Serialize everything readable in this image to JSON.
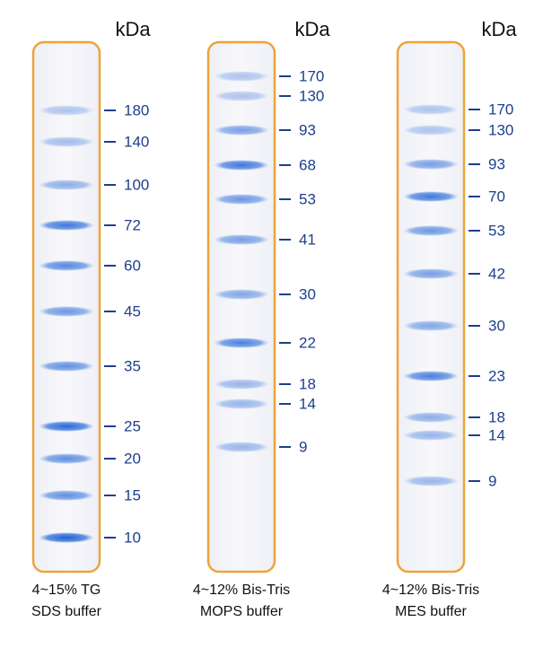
{
  "lanes": [
    {
      "unit": "kDa",
      "markers": [
        180,
        140,
        100,
        72,
        60,
        45,
        35,
        25,
        20,
        15,
        10
      ],
      "caption": [
        "4~15% TG",
        "SDS buffer"
      ]
    },
    {
      "unit": "kDa",
      "markers": [
        170,
        130,
        93,
        68,
        53,
        41,
        30,
        22,
        18,
        14,
        9
      ],
      "caption": [
        "4~12% Bis-Tris",
        "MOPS buffer"
      ]
    },
    {
      "unit": "kDa",
      "markers": [
        170,
        130,
        93,
        70,
        53,
        42,
        30,
        23,
        18,
        14,
        9
      ],
      "caption": [
        "4~12% Bis-Tris",
        "MES buffer"
      ]
    }
  ]
}
